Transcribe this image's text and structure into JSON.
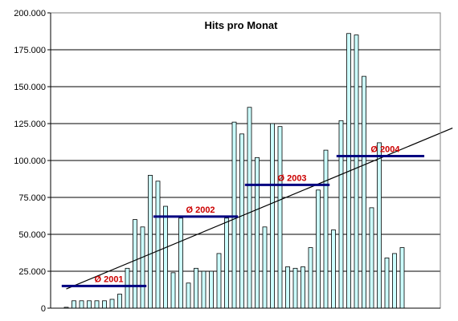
{
  "chart_data": {
    "type": "bar",
    "title": "Hits pro Monat",
    "xlabel": "",
    "ylabel": "",
    "ylim": [
      0,
      200000
    ],
    "yticks": [
      0,
      25000,
      50000,
      75000,
      100000,
      125000,
      150000,
      175000,
      200000
    ],
    "ytick_labels": [
      "0",
      "25.000",
      "50.000",
      "75.000",
      "100.000",
      "125.000",
      "150.000",
      "175.000",
      "200.000"
    ],
    "grid": "horizontal",
    "bar_color": "#ccffff",
    "bar_edge_color": "#000000",
    "values": [
      600,
      5000,
      5000,
      5000,
      5000,
      5000,
      6000,
      9500,
      27000,
      60000,
      55000,
      90000,
      86000,
      69000,
      24000,
      61000,
      17000,
      27000,
      25000,
      25000,
      37000,
      61000,
      126000,
      118000,
      136000,
      102000,
      55000,
      125000,
      123000,
      28000,
      27000,
      28000,
      41000,
      80000,
      107000,
      53000,
      127000,
      186000,
      185000,
      157000,
      68000,
      112000,
      34000,
      37000,
      41000
    ],
    "trend_line": {
      "start_index": 0,
      "start_value": 13000,
      "end_index": 50.6,
      "end_value": 122000,
      "color": "#000000"
    },
    "averages": [
      {
        "label": "Ø 2001",
        "value": 15000,
        "start_index": -0.6,
        "end_index": 10.5
      },
      {
        "label": "Ø 2002",
        "value": 62000,
        "start_index": 11.4,
        "end_index": 22.5
      },
      {
        "label": "Ø 2003",
        "value": 83500,
        "start_index": 23.4,
        "end_index": 34.5
      },
      {
        "label": "Ø 2004",
        "value": 103000,
        "start_index": 35.4,
        "end_index": 46.9
      }
    ],
    "average_line_color": "#000080",
    "average_label_color": "#cc0000"
  }
}
